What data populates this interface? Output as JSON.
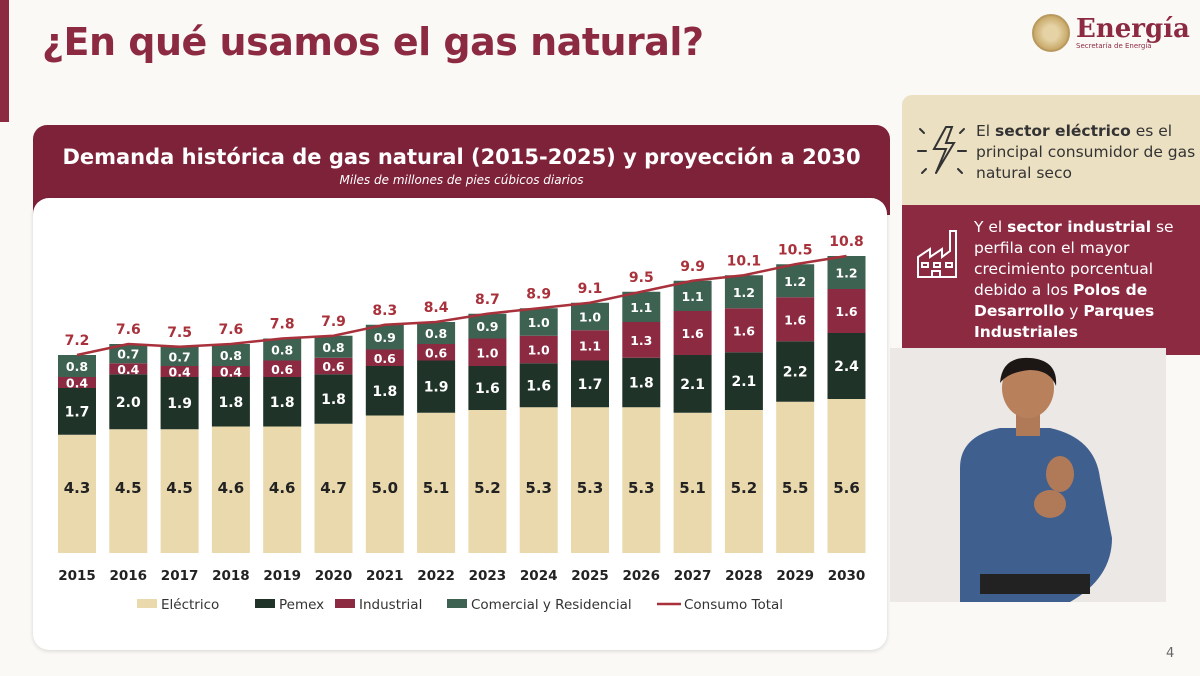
{
  "slide": {
    "title": "¿En qué usamos el gas natural?",
    "page_number": "4"
  },
  "logo": {
    "name": "Energía",
    "subtitle": "Secretaría de Energía"
  },
  "chart_data": {
    "type": "bar",
    "stacked": true,
    "title": "Demanda histórica de gas natural (2015-2025) y proyección a 2030",
    "subtitle": "Miles de millones de pies cúbicos diarios",
    "categories": [
      "2015",
      "2016",
      "2017",
      "2018",
      "2019",
      "2020",
      "2021",
      "2022",
      "2023",
      "2024",
      "2025",
      "2026",
      "2027",
      "2028",
      "2029",
      "2030"
    ],
    "series": [
      {
        "name": "Eléctrico",
        "color": "#ead9ad",
        "label_color": "#222",
        "values": [
          4.3,
          4.5,
          4.5,
          4.6,
          4.6,
          4.7,
          5.0,
          5.1,
          5.2,
          5.3,
          5.3,
          5.3,
          5.1,
          5.2,
          5.5,
          5.6
        ]
      },
      {
        "name": "Pemex",
        "color": "#1f3328",
        "label_color": "#fff",
        "values": [
          1.7,
          2.0,
          1.9,
          1.8,
          1.8,
          1.8,
          1.8,
          1.9,
          1.6,
          1.6,
          1.7,
          1.8,
          2.1,
          2.1,
          2.2,
          2.4
        ]
      },
      {
        "name": "Industrial",
        "color": "#8c2a42",
        "label_color": "#fff",
        "values": [
          0.4,
          0.4,
          0.4,
          0.4,
          0.6,
          0.6,
          0.6,
          0.6,
          1.0,
          1.0,
          1.1,
          1.3,
          1.6,
          1.6,
          1.6,
          1.6
        ]
      },
      {
        "name": "Comercial y Residencial",
        "color": "#3e6251",
        "label_color": "#fff",
        "values": [
          0.8,
          0.7,
          0.7,
          0.8,
          0.8,
          0.8,
          0.9,
          0.8,
          0.9,
          1.0,
          1.0,
          1.1,
          1.1,
          1.2,
          1.2,
          1.2
        ]
      }
    ],
    "line": {
      "name": "Consumo Total",
      "color": "#a8313b",
      "values": [
        7.2,
        7.6,
        7.5,
        7.6,
        7.8,
        7.9,
        8.3,
        8.4,
        8.7,
        8.9,
        9.1,
        9.5,
        9.9,
        10.1,
        10.5,
        10.8
      ]
    },
    "legend": "bottom",
    "grid": false,
    "ylim": [
      0,
      12
    ]
  },
  "notes": [
    {
      "parts": [
        {
          "t": "El "
        },
        {
          "t": "sector eléctrico",
          "b": true
        },
        {
          "t": " es el principal consumidor de gas natural seco"
        }
      ]
    },
    {
      "parts": [
        {
          "t": "Y el "
        },
        {
          "t": "sector industrial",
          "b": true
        },
        {
          "t": " se perfila con el mayor crecimiento porcentual debido a los "
        },
        {
          "t": "Polos de Desarrollo",
          "b": true
        },
        {
          "t": " y "
        },
        {
          "t": "Parques Industriales",
          "b": true
        }
      ]
    }
  ]
}
